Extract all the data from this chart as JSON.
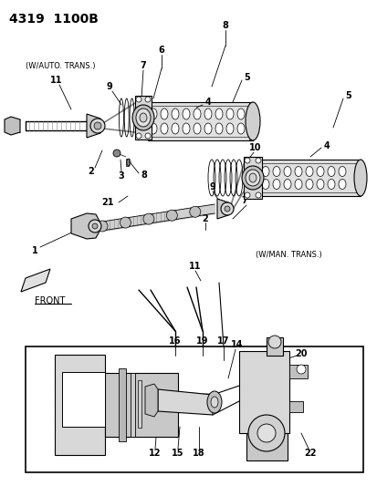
{
  "title": "4319  1100B",
  "bg_color": "#ffffff",
  "line_color": "#000000",
  "fig_width": 4.14,
  "fig_height": 5.33,
  "dpi": 100,
  "labels": {
    "w_auto": "(W/AUTO. TRANS.)",
    "w_man": "(W/MAN. TRANS.)",
    "front": "FRONT"
  },
  "gray_dark": "#555555",
  "gray_mid": "#888888",
  "gray_light": "#bbbbbb",
  "gray_fill": "#cccccc",
  "hatch_color": "#666666"
}
